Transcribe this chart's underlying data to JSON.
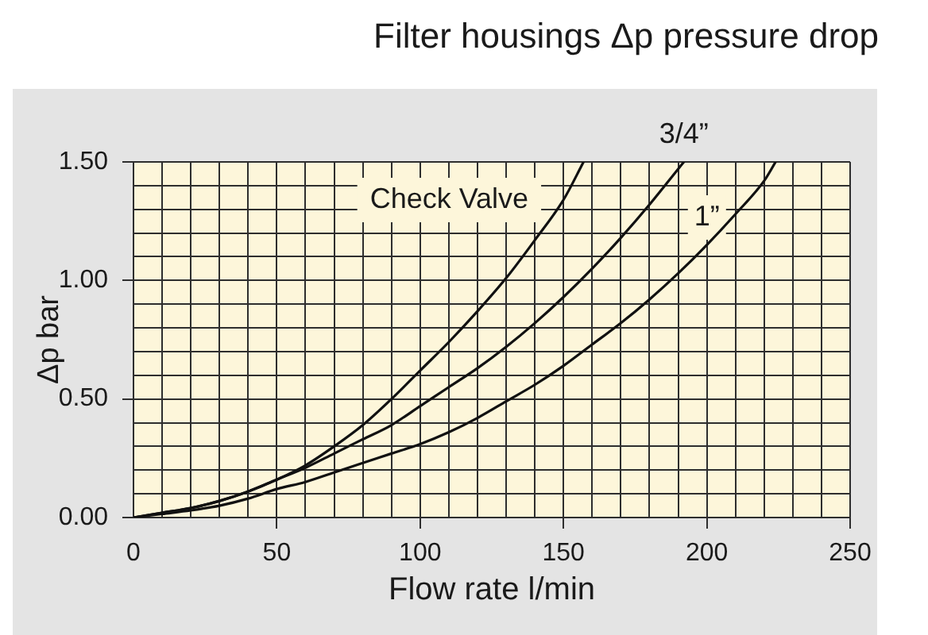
{
  "chart_data": {
    "type": "line",
    "title": "Filter housings Δp pressure drop",
    "xlabel": "Flow rate l/min",
    "ylabel": "Δp bar",
    "xlim": [
      0,
      250
    ],
    "ylim": [
      0,
      1.5
    ],
    "xticks": [
      0,
      {
        "value": 10,
        "label": null
      },
      {
        "value": 20,
        "label": null
      },
      {
        "value": 30,
        "label": null
      },
      {
        "value": 40,
        "label": null
      },
      50,
      {
        "value": 60,
        "label": null
      },
      {
        "value": 70,
        "label": null
      },
      {
        "value": 80,
        "label": null
      },
      {
        "value": 90,
        "label": null
      },
      100,
      {
        "value": 110,
        "label": null
      },
      {
        "value": 120,
        "label": null
      },
      {
        "value": 130,
        "label": null
      },
      {
        "value": 140,
        "label": null
      },
      150,
      {
        "value": 160,
        "label": null
      },
      {
        "value": 170,
        "label": null
      },
      {
        "value": 180,
        "label": null
      },
      {
        "value": 190,
        "label": null
      },
      200,
      {
        "value": 210,
        "label": null
      },
      {
        "value": 220,
        "label": null
      },
      {
        "value": 230,
        "label": null
      },
      {
        "value": 240,
        "label": null
      },
      250
    ],
    "yticks": [
      {
        "value": 0,
        "label": "0.00"
      },
      {
        "value": 0.1,
        "label": null
      },
      {
        "value": 0.2,
        "label": null
      },
      {
        "value": 0.3,
        "label": null
      },
      {
        "value": 0.4,
        "label": null
      },
      {
        "value": 0.5,
        "label": "0.50"
      },
      {
        "value": 0.6,
        "label": null
      },
      {
        "value": 0.7,
        "label": null
      },
      {
        "value": 0.8,
        "label": null
      },
      {
        "value": 0.9,
        "label": null
      },
      {
        "value": 1,
        "label": "1.00"
      },
      {
        "value": 1.1,
        "label": null
      },
      {
        "value": 1.2,
        "label": null
      },
      {
        "value": 1.3,
        "label": null
      },
      {
        "value": 1.4,
        "label": null
      },
      {
        "value": 1.5,
        "label": "1.50"
      }
    ],
    "grid": true,
    "marker": "none",
    "series": [
      {
        "name": "Check Valve",
        "color": "#111111",
        "x": [
          0,
          10,
          20,
          30,
          40,
          50,
          60,
          70,
          80,
          90,
          100,
          110,
          120,
          130,
          140,
          150,
          157
        ],
        "values": [
          0,
          0.02,
          0.04,
          0.07,
          0.11,
          0.16,
          0.22,
          0.3,
          0.39,
          0.5,
          0.62,
          0.74,
          0.87,
          1.01,
          1.17,
          1.34,
          1.5
        ]
      },
      {
        "name": "3/4”",
        "color": "#111111",
        "x": [
          0,
          10,
          20,
          30,
          40,
          50,
          60,
          70,
          80,
          90,
          100,
          110,
          120,
          130,
          140,
          150,
          160,
          170,
          180,
          190,
          192
        ],
        "values": [
          0,
          0.02,
          0.04,
          0.07,
          0.11,
          0.16,
          0.21,
          0.27,
          0.33,
          0.39,
          0.47,
          0.55,
          0.63,
          0.72,
          0.82,
          0.93,
          1.05,
          1.18,
          1.32,
          1.47,
          1.5
        ]
      },
      {
        "name": "1”",
        "color": "#111111",
        "x": [
          0,
          10,
          20,
          30,
          40,
          50,
          60,
          70,
          80,
          90,
          100,
          110,
          120,
          130,
          140,
          150,
          160,
          170,
          180,
          190,
          200,
          210,
          220,
          224
        ],
        "values": [
          0,
          0.015,
          0.03,
          0.05,
          0.08,
          0.12,
          0.15,
          0.19,
          0.23,
          0.27,
          0.31,
          0.36,
          0.42,
          0.49,
          0.56,
          0.64,
          0.73,
          0.82,
          0.92,
          1.03,
          1.15,
          1.28,
          1.42,
          1.5
        ]
      }
    ]
  }
}
